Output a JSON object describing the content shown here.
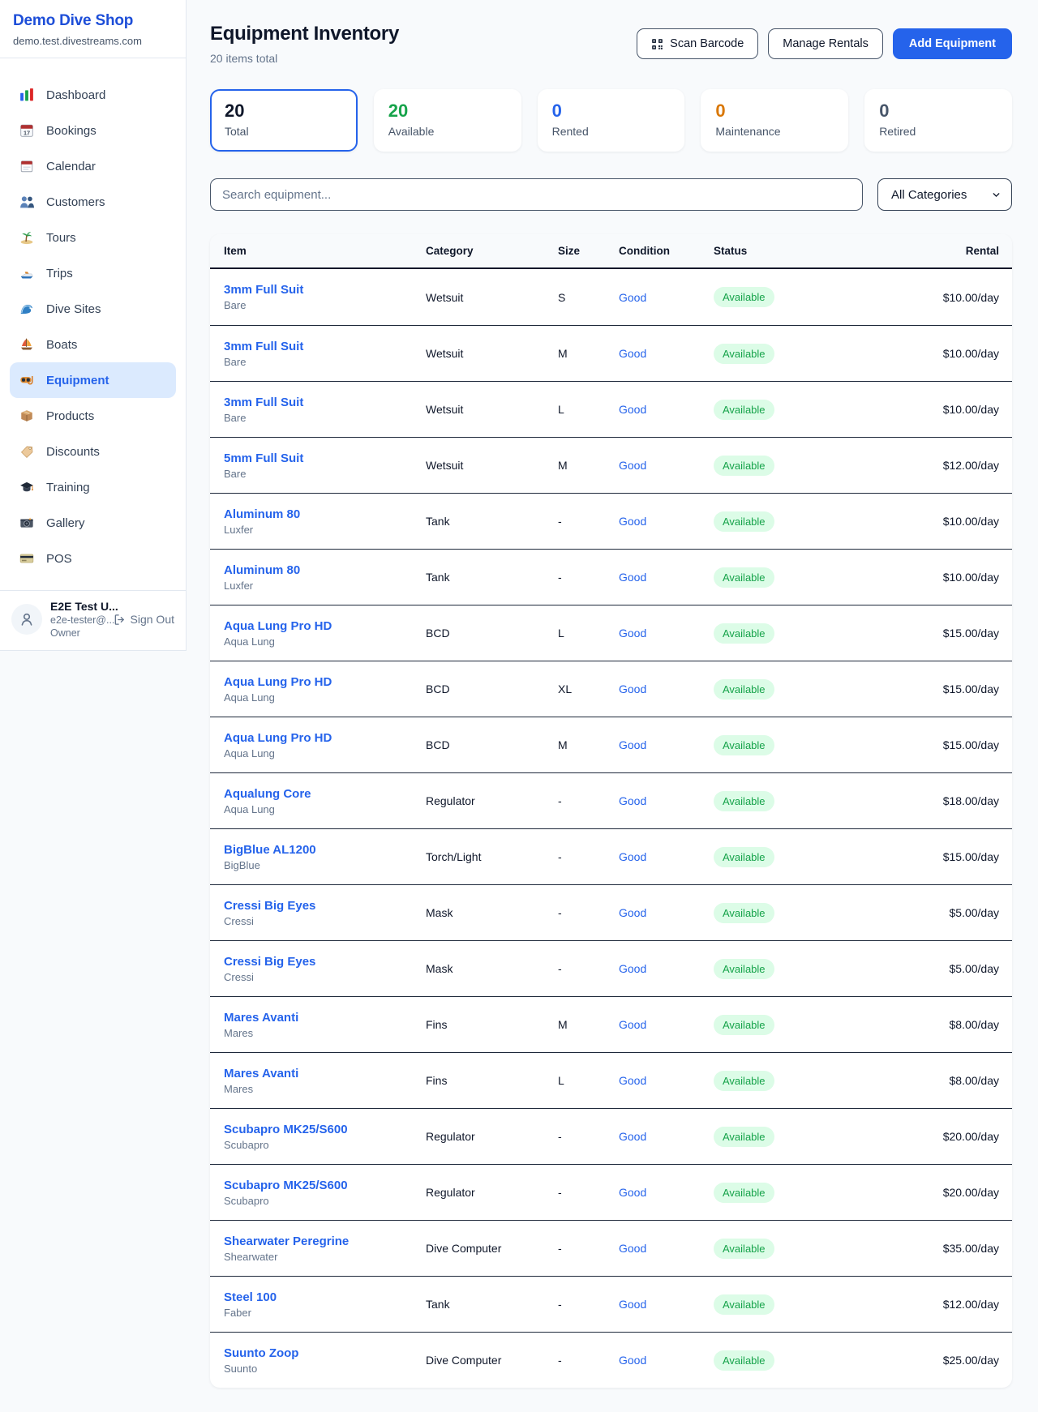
{
  "colors": {
    "accent": "#2563eb",
    "brand_blue": "#1d4ed8",
    "available_green": "#16a34a",
    "maintenance_orange": "#d97706",
    "badge_bg": "#dcfce7",
    "page_bg": "#f8fafc"
  },
  "sidebar": {
    "brand": {
      "name": "Demo Dive Shop",
      "domain": "demo.test.divestreams.com"
    },
    "items": [
      {
        "label": "Dashboard",
        "icon": "bar-chart"
      },
      {
        "label": "Bookings",
        "icon": "calendar-date"
      },
      {
        "label": "Calendar",
        "icon": "calendar-pad"
      },
      {
        "label": "Customers",
        "icon": "people"
      },
      {
        "label": "Tours",
        "icon": "island"
      },
      {
        "label": "Trips",
        "icon": "speedboat"
      },
      {
        "label": "Dive Sites",
        "icon": "wave"
      },
      {
        "label": "Boats",
        "icon": "sailboat"
      },
      {
        "label": "Equipment",
        "icon": "dive-mask",
        "active": true
      },
      {
        "label": "Products",
        "icon": "package"
      },
      {
        "label": "Discounts",
        "icon": "tag"
      },
      {
        "label": "Training",
        "icon": "grad-cap"
      },
      {
        "label": "Gallery",
        "icon": "camera"
      },
      {
        "label": "POS",
        "icon": "credit-card"
      }
    ],
    "user": {
      "name": "E2E Test U...",
      "email": "e2e-tester@...",
      "role": "Owner",
      "signout_label": "Sign Out"
    }
  },
  "header": {
    "title": "Equipment Inventory",
    "subtitle": "20 items total",
    "scan_label": "Scan Barcode",
    "manage_label": "Manage Rentals",
    "add_label": "Add Equipment"
  },
  "stats": [
    {
      "value": "20",
      "label": "Total",
      "color": "#0f172a",
      "selected": true
    },
    {
      "value": "20",
      "label": "Available",
      "color": "#16a34a"
    },
    {
      "value": "0",
      "label": "Rented",
      "color": "#2563eb"
    },
    {
      "value": "0",
      "label": "Maintenance",
      "color": "#d97706"
    },
    {
      "value": "0",
      "label": "Retired",
      "color": "#475569"
    }
  ],
  "filters": {
    "search_placeholder": "Search equipment...",
    "category": "All Categories"
  },
  "table": {
    "columns": [
      "Item",
      "Category",
      "Size",
      "Condition",
      "Status",
      "Rental"
    ],
    "rows": [
      {
        "name": "3mm Full Suit",
        "brand": "Bare",
        "category": "Wetsuit",
        "size": "S",
        "condition": "Good",
        "status": "Available",
        "rental": "$10.00/day"
      },
      {
        "name": "3mm Full Suit",
        "brand": "Bare",
        "category": "Wetsuit",
        "size": "M",
        "condition": "Good",
        "status": "Available",
        "rental": "$10.00/day"
      },
      {
        "name": "3mm Full Suit",
        "brand": "Bare",
        "category": "Wetsuit",
        "size": "L",
        "condition": "Good",
        "status": "Available",
        "rental": "$10.00/day"
      },
      {
        "name": "5mm Full Suit",
        "brand": "Bare",
        "category": "Wetsuit",
        "size": "M",
        "condition": "Good",
        "status": "Available",
        "rental": "$12.00/day"
      },
      {
        "name": "Aluminum 80",
        "brand": "Luxfer",
        "category": "Tank",
        "size": "-",
        "condition": "Good",
        "status": "Available",
        "rental": "$10.00/day"
      },
      {
        "name": "Aluminum 80",
        "brand": "Luxfer",
        "category": "Tank",
        "size": "-",
        "condition": "Good",
        "status": "Available",
        "rental": "$10.00/day"
      },
      {
        "name": "Aqua Lung Pro HD",
        "brand": "Aqua Lung",
        "category": "BCD",
        "size": "L",
        "condition": "Good",
        "status": "Available",
        "rental": "$15.00/day"
      },
      {
        "name": "Aqua Lung Pro HD",
        "brand": "Aqua Lung",
        "category": "BCD",
        "size": "XL",
        "condition": "Good",
        "status": "Available",
        "rental": "$15.00/day"
      },
      {
        "name": "Aqua Lung Pro HD",
        "brand": "Aqua Lung",
        "category": "BCD",
        "size": "M",
        "condition": "Good",
        "status": "Available",
        "rental": "$15.00/day"
      },
      {
        "name": "Aqualung Core",
        "brand": "Aqua Lung",
        "category": "Regulator",
        "size": "-",
        "condition": "Good",
        "status": "Available",
        "rental": "$18.00/day"
      },
      {
        "name": "BigBlue AL1200",
        "brand": "BigBlue",
        "category": "Torch/Light",
        "size": "-",
        "condition": "Good",
        "status": "Available",
        "rental": "$15.00/day"
      },
      {
        "name": "Cressi Big Eyes",
        "brand": "Cressi",
        "category": "Mask",
        "size": "-",
        "condition": "Good",
        "status": "Available",
        "rental": "$5.00/day"
      },
      {
        "name": "Cressi Big Eyes",
        "brand": "Cressi",
        "category": "Mask",
        "size": "-",
        "condition": "Good",
        "status": "Available",
        "rental": "$5.00/day"
      },
      {
        "name": "Mares Avanti",
        "brand": "Mares",
        "category": "Fins",
        "size": "M",
        "condition": "Good",
        "status": "Available",
        "rental": "$8.00/day"
      },
      {
        "name": "Mares Avanti",
        "brand": "Mares",
        "category": "Fins",
        "size": "L",
        "condition": "Good",
        "status": "Available",
        "rental": "$8.00/day"
      },
      {
        "name": "Scubapro MK25/S600",
        "brand": "Scubapro",
        "category": "Regulator",
        "size": "-",
        "condition": "Good",
        "status": "Available",
        "rental": "$20.00/day"
      },
      {
        "name": "Scubapro MK25/S600",
        "brand": "Scubapro",
        "category": "Regulator",
        "size": "-",
        "condition": "Good",
        "status": "Available",
        "rental": "$20.00/day"
      },
      {
        "name": "Shearwater Peregrine",
        "brand": "Shearwater",
        "category": "Dive Computer",
        "size": "-",
        "condition": "Good",
        "status": "Available",
        "rental": "$35.00/day"
      },
      {
        "name": "Steel 100",
        "brand": "Faber",
        "category": "Tank",
        "size": "-",
        "condition": "Good",
        "status": "Available",
        "rental": "$12.00/day"
      },
      {
        "name": "Suunto Zoop",
        "brand": "Suunto",
        "category": "Dive Computer",
        "size": "-",
        "condition": "Good",
        "status": "Available",
        "rental": "$25.00/day"
      }
    ]
  }
}
